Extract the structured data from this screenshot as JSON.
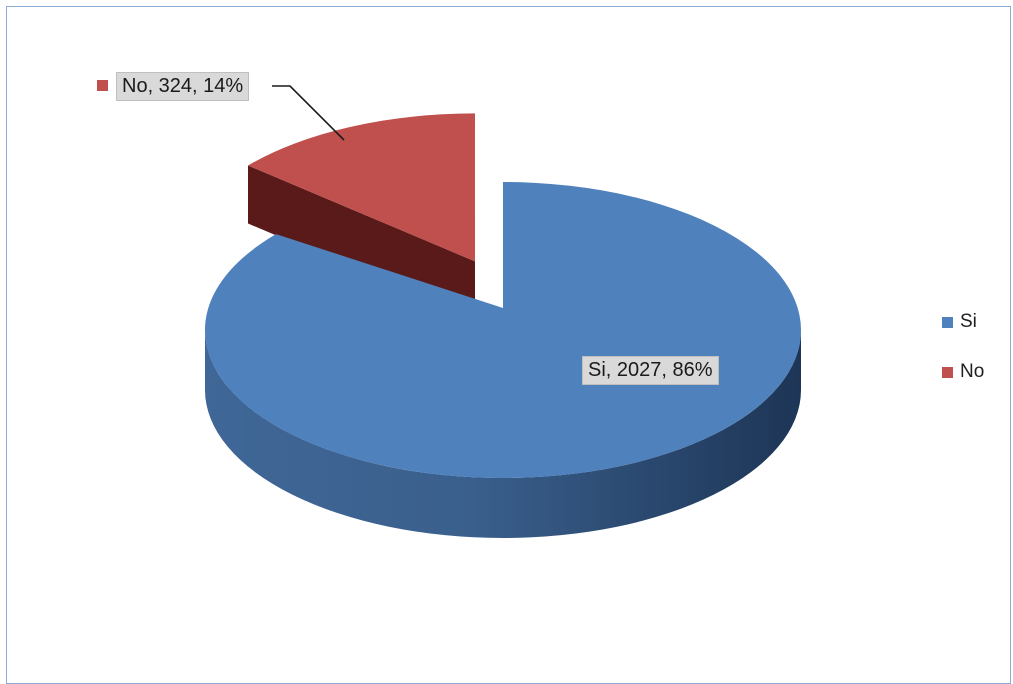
{
  "chart_data": {
    "type": "pie",
    "style": "3d-exploded",
    "categories": [
      "Si",
      "No"
    ],
    "values": [
      2027,
      324
    ],
    "percentages": [
      86,
      14
    ],
    "data_labels": [
      "Si, 2027, 86%",
      "No, 324, 14%"
    ],
    "colors": [
      "#4f81bd",
      "#c0504d"
    ],
    "legend": {
      "position": "right",
      "items": [
        {
          "label": "Si",
          "color": "#4f81bd"
        },
        {
          "label": "No",
          "color": "#c0504d"
        }
      ]
    }
  }
}
